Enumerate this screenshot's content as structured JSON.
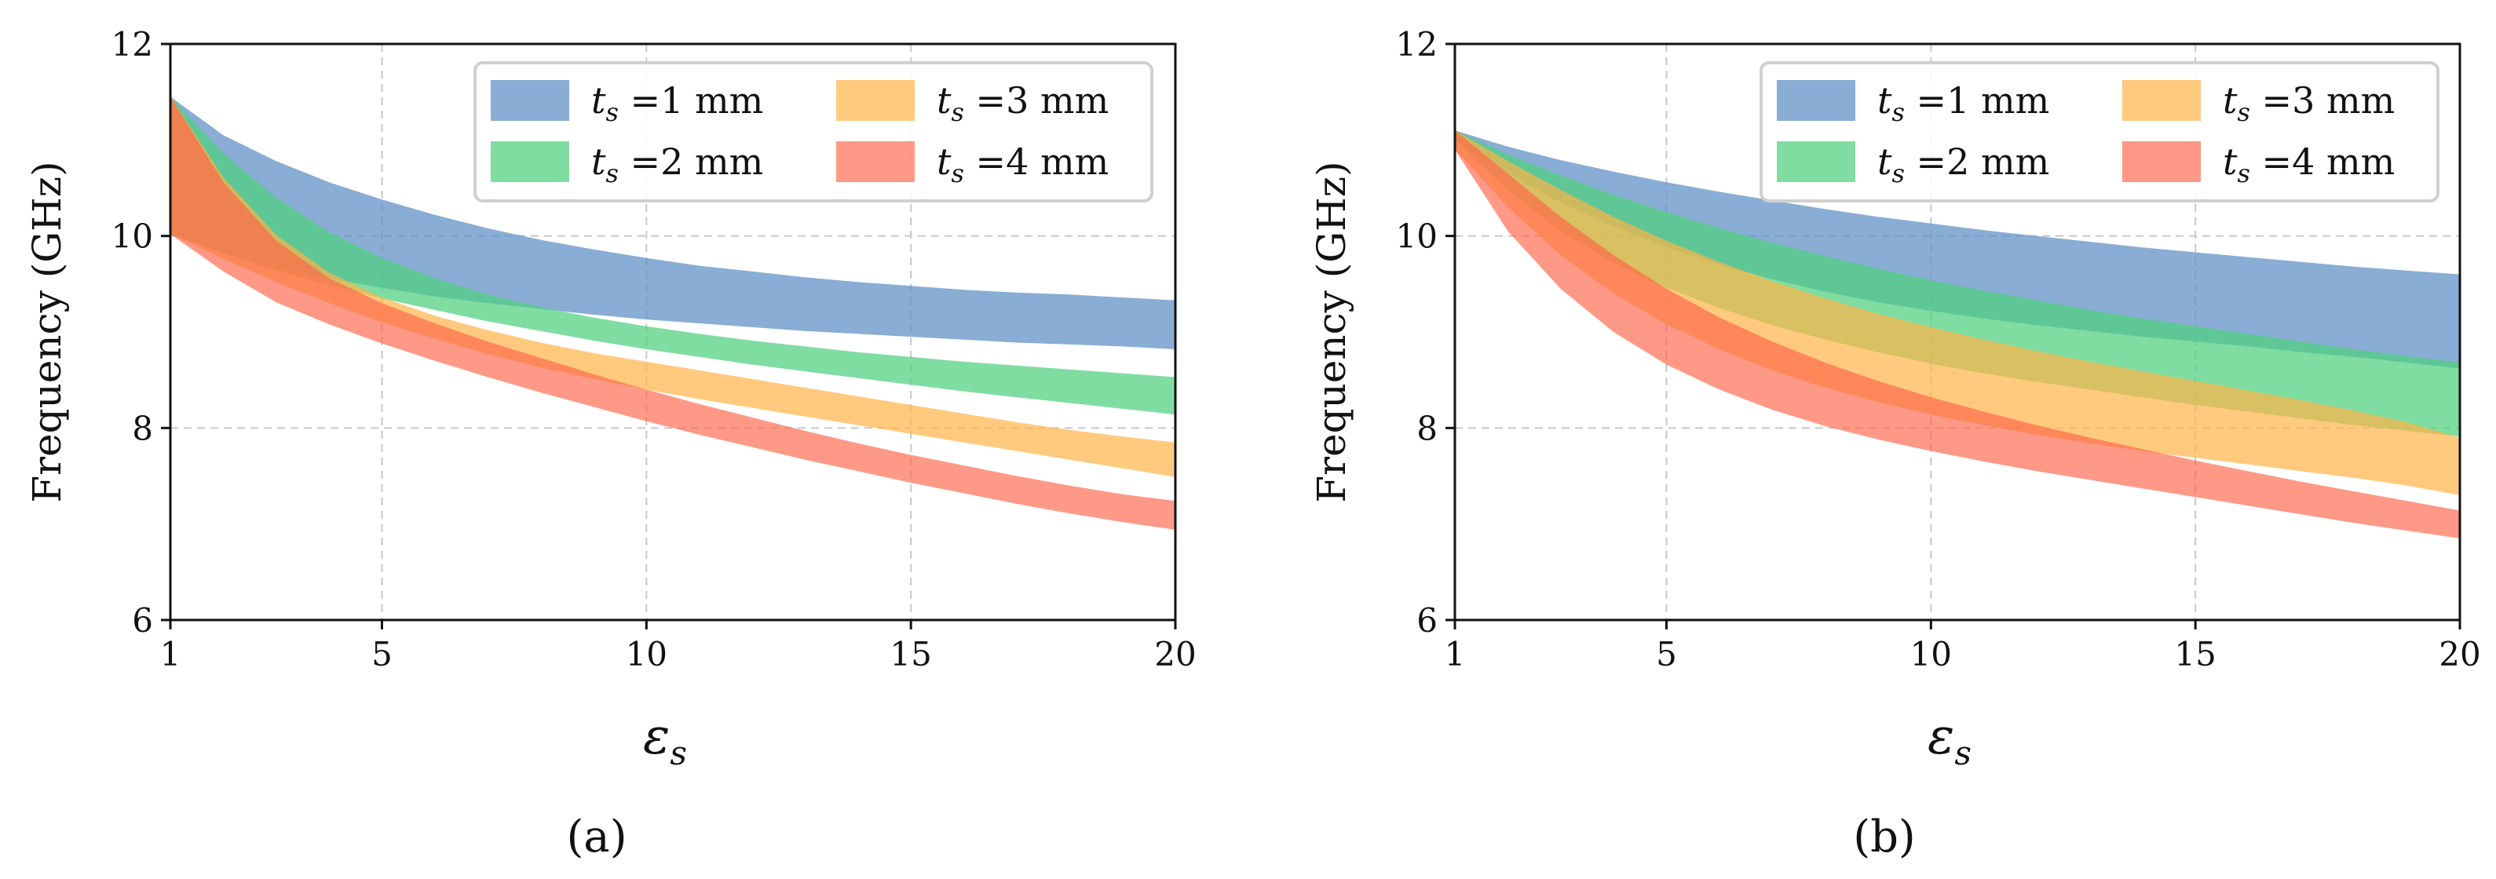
{
  "chart_data": [
    {
      "type": "area",
      "panel_label": "(a)",
      "xlabel_symbol": "ε",
      "xlabel_sub": "s",
      "ylabel": "Frequency (GHz)",
      "xlim": [
        1,
        20
      ],
      "ylim": [
        6,
        12
      ],
      "xticks": [
        "1",
        "5",
        "10",
        "15",
        "20"
      ],
      "yticks": [
        "6",
        "8",
        "10",
        "12"
      ],
      "grid": true,
      "legend_position": "top-right",
      "legend": [
        {
          "var": "t",
          "sub": "s",
          "label": " =1 mm"
        },
        {
          "var": "t",
          "sub": "s",
          "label": " =2 mm"
        },
        {
          "var": "t",
          "sub": "s",
          "label": " =3 mm"
        },
        {
          "var": "t",
          "sub": "s",
          "label": " =4 mm"
        }
      ],
      "x": [
        1,
        2,
        3,
        4,
        5,
        6,
        7,
        8,
        9,
        10,
        11,
        12,
        13,
        14,
        15,
        16,
        17,
        18,
        19,
        20
      ],
      "series": [
        {
          "color": "#5b8ec4",
          "alpha": 0.72,
          "upper": [
            11.45,
            11.05,
            10.78,
            10.56,
            10.38,
            10.22,
            10.08,
            9.96,
            9.86,
            9.77,
            9.69,
            9.63,
            9.57,
            9.52,
            9.48,
            9.44,
            9.41,
            9.39,
            9.36,
            9.33
          ],
          "lower": [
            10.02,
            9.83,
            9.68,
            9.56,
            9.46,
            9.37,
            9.3,
            9.24,
            9.18,
            9.13,
            9.09,
            9.05,
            9.01,
            8.98,
            8.95,
            8.92,
            8.89,
            8.87,
            8.85,
            8.82
          ]
        },
        {
          "color": "#4fd07e",
          "alpha": 0.72,
          "upper": [
            11.45,
            10.86,
            10.4,
            10.04,
            9.77,
            9.56,
            9.39,
            9.26,
            9.15,
            9.06,
            8.98,
            8.91,
            8.85,
            8.79,
            8.74,
            8.69,
            8.65,
            8.61,
            8.57,
            8.53
          ],
          "lower": [
            10.02,
            9.82,
            9.64,
            9.49,
            9.35,
            9.23,
            9.11,
            9.01,
            8.91,
            8.82,
            8.74,
            8.66,
            8.59,
            8.52,
            8.45,
            8.38,
            8.32,
            8.26,
            8.2,
            8.14
          ]
        },
        {
          "color": "#ffb347",
          "alpha": 0.7,
          "upper": [
            11.45,
            10.61,
            10.01,
            9.62,
            9.36,
            9.17,
            9.02,
            8.89,
            8.78,
            8.69,
            8.6,
            8.51,
            8.42,
            8.33,
            8.24,
            8.15,
            8.06,
            7.98,
            7.91,
            7.85
          ],
          "lower": [
            10.02,
            9.76,
            9.52,
            9.3,
            9.1,
            8.93,
            8.77,
            8.63,
            8.51,
            8.4,
            8.3,
            8.21,
            8.12,
            8.03,
            7.94,
            7.85,
            7.76,
            7.67,
            7.58,
            7.49
          ]
        },
        {
          "color": "#ff6347",
          "alpha": 0.65,
          "upper": [
            11.45,
            10.56,
            9.95,
            9.56,
            9.3,
            9.09,
            8.9,
            8.73,
            8.56,
            8.4,
            8.25,
            8.11,
            7.97,
            7.84,
            7.72,
            7.61,
            7.5,
            7.4,
            7.31,
            7.24
          ],
          "lower": [
            10.02,
            9.63,
            9.31,
            9.08,
            8.88,
            8.7,
            8.53,
            8.37,
            8.22,
            8.07,
            7.93,
            7.8,
            7.67,
            7.55,
            7.43,
            7.32,
            7.21,
            7.11,
            7.02,
            6.94
          ]
        }
      ]
    },
    {
      "type": "area",
      "panel_label": "(b)",
      "xlabel_symbol": "ε",
      "xlabel_sub": "s",
      "ylabel": "Frequency (GHz)",
      "xlim": [
        1,
        20
      ],
      "ylim": [
        6,
        12
      ],
      "xticks": [
        "1",
        "5",
        "10",
        "15",
        "20"
      ],
      "yticks": [
        "6",
        "8",
        "10",
        "12"
      ],
      "grid": true,
      "legend_position": "top-right",
      "legend": [
        {
          "var": "t",
          "sub": "s",
          "label": " =1 mm"
        },
        {
          "var": "t",
          "sub": "s",
          "label": " =2 mm"
        },
        {
          "var": "t",
          "sub": "s",
          "label": " =3 mm"
        },
        {
          "var": "t",
          "sub": "s",
          "label": " =4 mm"
        }
      ],
      "x": [
        1,
        2,
        3,
        4,
        5,
        6,
        7,
        8,
        9,
        10,
        11,
        12,
        13,
        14,
        15,
        16,
        17,
        18,
        19,
        20
      ],
      "series": [
        {
          "color": "#5b8ec4",
          "alpha": 0.72,
          "upper": [
            11.1,
            10.93,
            10.79,
            10.67,
            10.56,
            10.46,
            10.37,
            10.28,
            10.2,
            10.13,
            10.06,
            10.0,
            9.94,
            9.88,
            9.83,
            9.78,
            9.73,
            9.68,
            9.64,
            9.6
          ],
          "lower": [
            11.0,
            10.65,
            10.35,
            10.1,
            9.88,
            9.7,
            9.55,
            9.42,
            9.31,
            9.22,
            9.14,
            9.07,
            9.01,
            8.95,
            8.9,
            8.85,
            8.79,
            8.74,
            8.68,
            8.62
          ]
        },
        {
          "color": "#4fd07e",
          "alpha": 0.72,
          "upper": [
            11.1,
            10.85,
            10.63,
            10.43,
            10.25,
            10.08,
            9.93,
            9.79,
            9.66,
            9.54,
            9.43,
            9.33,
            9.23,
            9.14,
            9.06,
            8.98,
            8.9,
            8.82,
            8.75,
            8.68
          ],
          "lower": [
            11.0,
            10.48,
            10.05,
            9.72,
            9.46,
            9.25,
            9.07,
            8.92,
            8.79,
            8.67,
            8.57,
            8.48,
            8.4,
            8.32,
            8.24,
            8.17,
            8.1,
            8.03,
            7.97,
            7.91
          ]
        },
        {
          "color": "#ffb347",
          "alpha": 0.7,
          "upper": [
            11.1,
            10.78,
            10.48,
            10.2,
            9.95,
            9.73,
            9.53,
            9.35,
            9.19,
            9.05,
            8.92,
            8.8,
            8.69,
            8.59,
            8.49,
            8.39,
            8.29,
            8.18,
            8.06,
            7.9
          ],
          "lower": [
            10.9,
            10.3,
            9.8,
            9.4,
            9.08,
            8.82,
            8.6,
            8.42,
            8.27,
            8.14,
            8.03,
            7.93,
            7.84,
            7.76,
            7.69,
            7.62,
            7.55,
            7.48,
            7.4,
            7.3
          ]
        },
        {
          "color": "#ff6347",
          "alpha": 0.65,
          "upper": [
            11.1,
            10.65,
            10.2,
            9.8,
            9.45,
            9.15,
            8.9,
            8.68,
            8.49,
            8.32,
            8.17,
            8.03,
            7.9,
            7.78,
            7.66,
            7.55,
            7.44,
            7.34,
            7.24,
            7.14
          ],
          "lower": [
            10.9,
            10.05,
            9.45,
            9.0,
            8.66,
            8.4,
            8.19,
            8.02,
            7.88,
            7.76,
            7.65,
            7.55,
            7.46,
            7.37,
            7.28,
            7.19,
            7.1,
            7.01,
            6.93,
            6.85
          ]
        }
      ]
    }
  ]
}
